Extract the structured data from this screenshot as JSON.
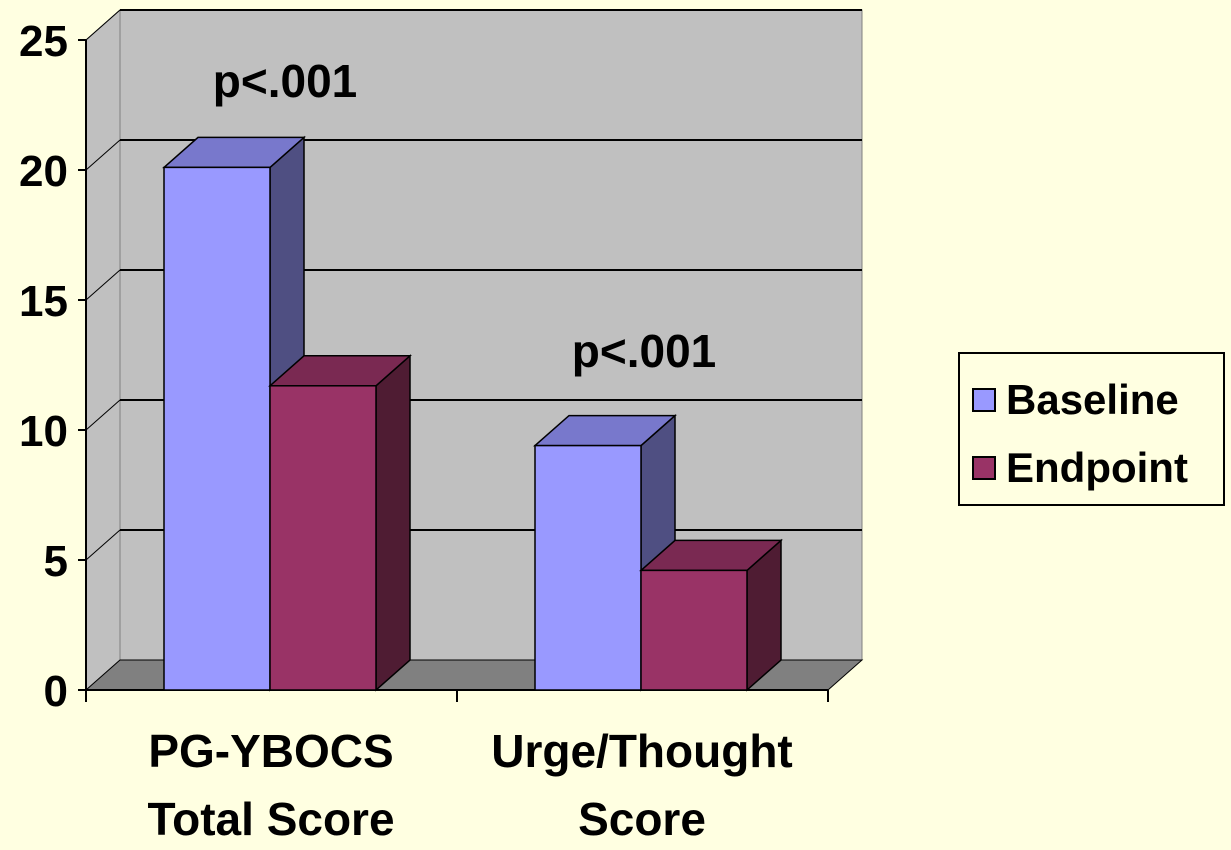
{
  "chart_data": {
    "type": "bar",
    "categories": [
      "PG-YBOCS Total Score",
      "Urge/Thought Score"
    ],
    "category_label_lines": [
      [
        "PG-YBOCS",
        "Total Score"
      ],
      [
        "Urge/Thought",
        "Score"
      ]
    ],
    "series": [
      {
        "name": "Baseline",
        "values": [
          20.1,
          9.4
        ],
        "color": "#9999ff",
        "side_color": "#4f4f82",
        "top_color": "#7878cc"
      },
      {
        "name": "Endpoint",
        "values": [
          11.7,
          4.6
        ],
        "color": "#993366",
        "side_color": "#4f1c33",
        "top_color": "#7a2952"
      }
    ],
    "ylim": [
      0,
      25
    ],
    "yticks": [
      0,
      5,
      10,
      15,
      20,
      25
    ],
    "grid": true,
    "legend_position": "right",
    "annotations": [
      "p<.001",
      "p<.001"
    ],
    "colors": {
      "background": "#ffffe1",
      "back_wall": "#c0c0c0",
      "floor": "#808080",
      "gridline": "#000000"
    }
  }
}
